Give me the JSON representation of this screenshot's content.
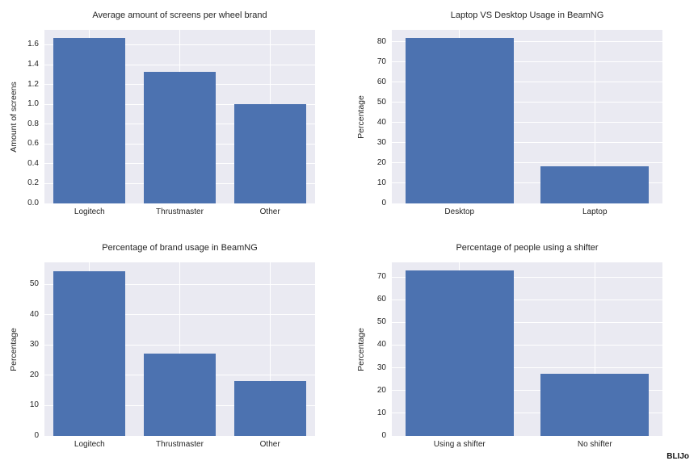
{
  "figure": {
    "watermark": "BLIJo"
  },
  "style": {
    "bar_color": "#4c72b0",
    "plot_bg": "#eaeaf2",
    "grid_color": "#ffffff",
    "text_color": "#262626"
  },
  "chart_data": [
    {
      "type": "bar",
      "title": "Average amount of screens per wheel brand",
      "xlabel": "",
      "ylabel": "Amount of screens",
      "categories": [
        "Logitech",
        "Thrustmaster",
        "Other"
      ],
      "values": [
        1.67,
        1.33,
        1.0
      ],
      "ylim": [
        0,
        1.75
      ],
      "yticks": [
        0.0,
        0.2,
        0.4,
        0.6,
        0.8,
        1.0,
        1.2,
        1.4,
        1.6
      ],
      "ytick_labels": [
        "0.0",
        "0.2",
        "0.4",
        "0.6",
        "0.8",
        "1.0",
        "1.2",
        "1.4",
        "1.6"
      ],
      "grid": true,
      "legend": null
    },
    {
      "type": "bar",
      "title": "Laptop VS Desktop Usage in BeamNG",
      "xlabel": "",
      "ylabel": "Percentage",
      "categories": [
        "Desktop",
        "Laptop"
      ],
      "values": [
        81.8,
        18.2
      ],
      "ylim": [
        0,
        85.9
      ],
      "yticks": [
        0,
        10,
        20,
        30,
        40,
        50,
        60,
        70,
        80
      ],
      "ytick_labels": [
        "0",
        "10",
        "20",
        "30",
        "40",
        "50",
        "60",
        "70",
        "80"
      ],
      "grid": true,
      "legend": null
    },
    {
      "type": "bar",
      "title": "Percentage of brand usage in BeamNG",
      "xlabel": "",
      "ylabel": "Percentage",
      "categories": [
        "Logitech",
        "Thrustmaster",
        "Other"
      ],
      "values": [
        54.5,
        27.3,
        18.2
      ],
      "ylim": [
        0,
        57.3
      ],
      "yticks": [
        0,
        10,
        20,
        30,
        40,
        50
      ],
      "ytick_labels": [
        "0",
        "10",
        "20",
        "30",
        "40",
        "50"
      ],
      "grid": true,
      "legend": null
    },
    {
      "type": "bar",
      "title": "Percentage of people using a shifter",
      "xlabel": "",
      "ylabel": "Percentage",
      "categories": [
        "Using a shifter",
        "No shifter"
      ],
      "values": [
        72.7,
        27.3
      ],
      "ylim": [
        0,
        76.4
      ],
      "yticks": [
        0,
        10,
        20,
        30,
        40,
        50,
        60,
        70
      ],
      "ytick_labels": [
        "0",
        "10",
        "20",
        "30",
        "40",
        "50",
        "60",
        "70"
      ],
      "grid": true,
      "legend": null
    }
  ]
}
